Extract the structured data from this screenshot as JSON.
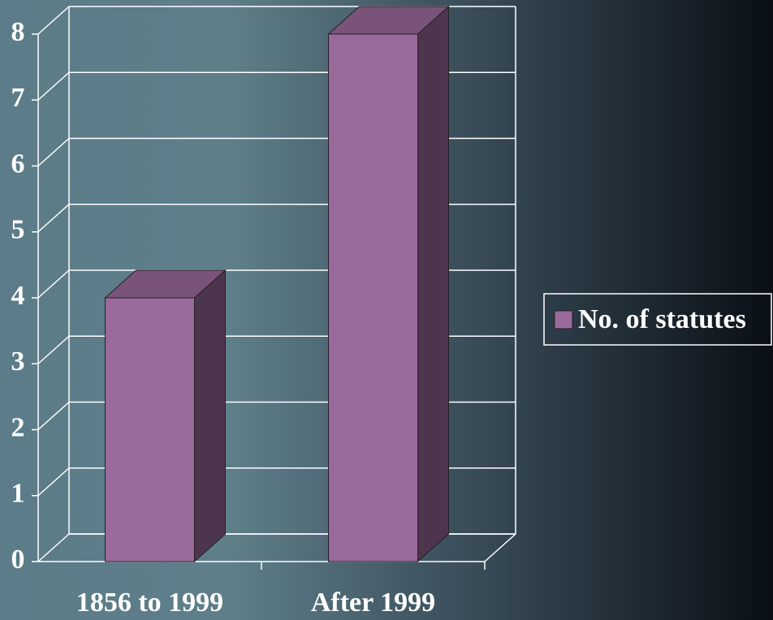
{
  "chart_data": {
    "type": "bar3d",
    "categories": [
      "1856 to 1999",
      "After 1999"
    ],
    "series": [
      {
        "name": "No. of statutes",
        "color": "#9b6a9c",
        "values": [
          4,
          8
        ]
      }
    ],
    "ylim": [
      0,
      8
    ],
    "yticks": [
      0,
      1,
      2,
      3,
      4,
      5,
      6,
      7,
      8
    ],
    "grid": true,
    "legend": "right"
  }
}
